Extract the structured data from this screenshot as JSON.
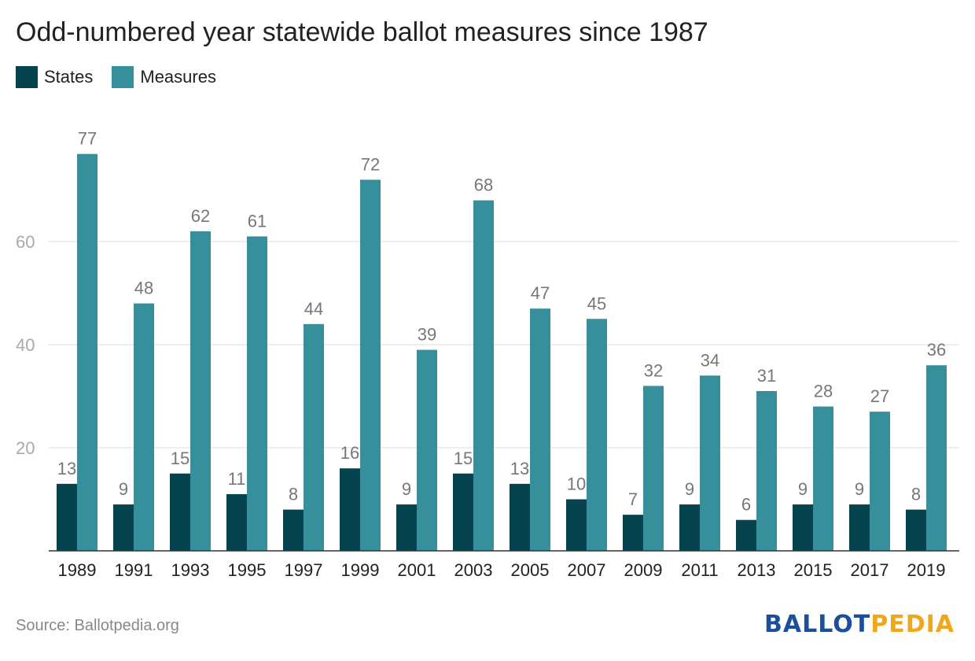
{
  "title": "Odd-numbered year statewide ballot measures since 1987",
  "legend": [
    {
      "label": "States",
      "color": "#07434f"
    },
    {
      "label": "Measures",
      "color": "#378f9b"
    }
  ],
  "source": "Source: Ballotpedia.org",
  "logo": {
    "part1": "BALLOT",
    "part2": "PEDIA"
  },
  "colors": {
    "grid": "#dddddd",
    "axis": "#333333",
    "tick": "#aaaaaa",
    "label": "#777777",
    "xtick": "#222222"
  },
  "chart_data": {
    "type": "bar",
    "title": "Odd-numbered year statewide ballot measures since 1987",
    "xlabel": "",
    "ylabel": "",
    "ylim": [
      0,
      80
    ],
    "yticks": [
      20,
      40,
      60
    ],
    "grid": true,
    "legend_position": "top-left",
    "categories": [
      "1989",
      "1991",
      "1993",
      "1995",
      "1997",
      "1999",
      "2001",
      "2003",
      "2005",
      "2007",
      "2009",
      "2011",
      "2013",
      "2015",
      "2017",
      "2019"
    ],
    "series": [
      {
        "name": "States",
        "values": [
          13,
          9,
          15,
          11,
          8,
          16,
          9,
          15,
          13,
          10,
          7,
          9,
          6,
          9,
          9,
          8
        ]
      },
      {
        "name": "Measures",
        "values": [
          77,
          48,
          62,
          61,
          44,
          72,
          39,
          68,
          47,
          45,
          32,
          34,
          31,
          28,
          27,
          36
        ]
      }
    ]
  }
}
